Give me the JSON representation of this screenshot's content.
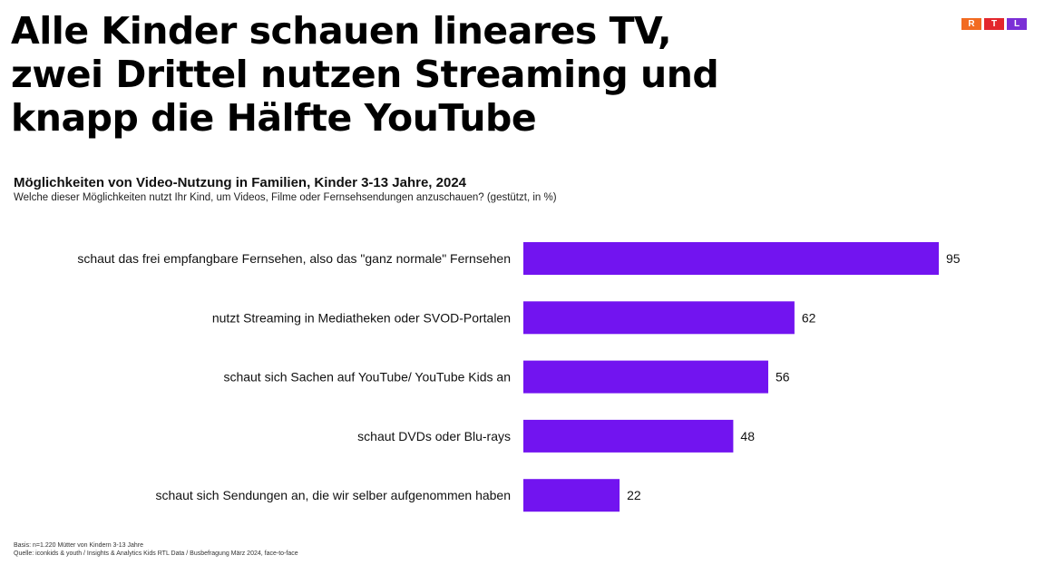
{
  "headline": {
    "lines": [
      "Alle Kinder schauen lineares TV,",
      "zwei Drittel nutzen Streaming und",
      "knapp die Hälfte YouTube"
    ]
  },
  "logo": {
    "letters": [
      "R",
      "T",
      "L"
    ],
    "colors": [
      "#f26b21",
      "#e3262c",
      "#7b2fd6"
    ]
  },
  "chart_data": {
    "type": "bar",
    "orientation": "horizontal",
    "title": "Möglichkeiten von Video-Nutzung in Familien, Kinder 3-13 Jahre, 2024",
    "subtitle": "Welche dieser Möglichkeiten nutzt Ihr Kind, um Videos, Filme oder Fernsehsendungen anzuschauen? (gestützt, in %)",
    "categories": [
      "schaut das frei empfangbare Fernsehen, also das \"ganz normale\" Fernsehen",
      "nutzt Streaming in Mediatheken oder SVOD-Portalen",
      "schaut sich Sachen auf YouTube/ YouTube Kids an",
      "schaut DVDs oder Blu-rays",
      "schaut sich Sendungen an, die wir selber aufgenommen haben"
    ],
    "values": [
      95,
      62,
      56,
      48,
      22
    ],
    "value_labels": [
      "95",
      "62",
      "56",
      "48",
      "22"
    ],
    "xlim": [
      0,
      100
    ],
    "bar_color": "#7214f0",
    "grid": false,
    "legend": false
  },
  "footnotes": [
    "Basis: n=1.220 Mütter von Kindern 3-13 Jahre",
    "Quelle: iconkids & youth / Insights & Analytics Kids RTL Data / Busbefragung März 2024, face-to-face"
  ]
}
